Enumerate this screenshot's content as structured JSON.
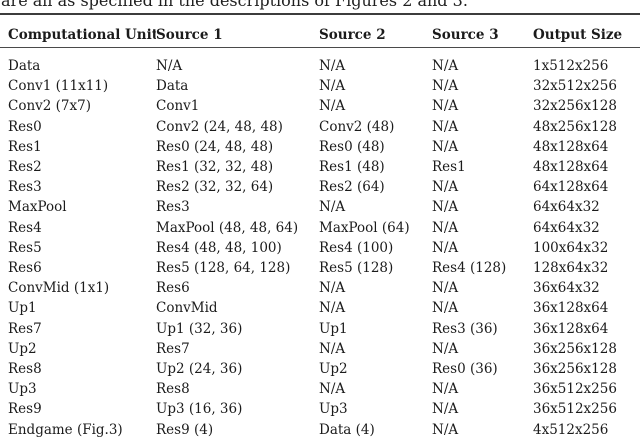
{
  "intro": {
    "text": "are all as specified in the descriptions of Figures 2 and 3."
  },
  "table": {
    "columns": [
      "Computational Unit",
      "Source 1",
      "Source 2",
      "Source 3",
      "Output Size"
    ],
    "rows": [
      [
        "Data",
        "N/A",
        "N/A",
        "N/A",
        "1x512x256"
      ],
      [
        "Conv1 (11x11)",
        "Data",
        "N/A",
        "N/A",
        "32x512x256"
      ],
      [
        "Conv2 (7x7)",
        "Conv1",
        "N/A",
        "N/A",
        "32x256x128"
      ],
      [
        "Res0",
        "Conv2 (24, 48, 48)",
        "Conv2 (48)",
        "N/A",
        "48x256x128"
      ],
      [
        "Res1",
        "Res0 (24, 48, 48)",
        "Res0 (48)",
        "N/A",
        "48x128x64"
      ],
      [
        "Res2",
        "Res1 (32, 32, 48)",
        "Res1 (48)",
        "Res1",
        "48x128x64"
      ],
      [
        "Res3",
        "Res2 (32, 32, 64)",
        "Res2 (64)",
        "N/A",
        "64x128x64"
      ],
      [
        "MaxPool",
        "Res3",
        "N/A",
        "N/A",
        "64x64x32"
      ],
      [
        "Res4",
        "MaxPool (48, 48, 64)",
        "MaxPool (64)",
        "N/A",
        "64x64x32"
      ],
      [
        "Res5",
        "Res4 (48, 48, 100)",
        "Res4 (100)",
        "N/A",
        "100x64x32"
      ],
      [
        "Res6",
        "Res5 (128, 64, 128)",
        "Res5 (128)",
        "Res4 (128)",
        "128x64x32"
      ],
      [
        "ConvMid (1x1)",
        "Res6",
        "N/A",
        "N/A",
        "36x64x32"
      ],
      [
        "Up1",
        "ConvMid",
        "N/A",
        "N/A",
        "36x128x64"
      ],
      [
        "Res7",
        "Up1 (32, 36)",
        "Up1",
        "Res3 (36)",
        "36x128x64"
      ],
      [
        "Up2",
        "Res7",
        "N/A",
        "N/A",
        "36x256x128"
      ],
      [
        "Res8",
        "Up2 (24, 36)",
        "Up2",
        "Res0 (36)",
        "36x256x128"
      ],
      [
        "Up3",
        "Res8",
        "N/A",
        "N/A",
        "36x512x256"
      ],
      [
        "Res9",
        "Up3 (16, 36)",
        "Up3",
        "N/A",
        "36x512x256"
      ],
      [
        "Endgame (Fig.3)",
        "Res9 (4)",
        "Data (4)",
        "N/A",
        "4x512x256"
      ]
    ]
  }
}
